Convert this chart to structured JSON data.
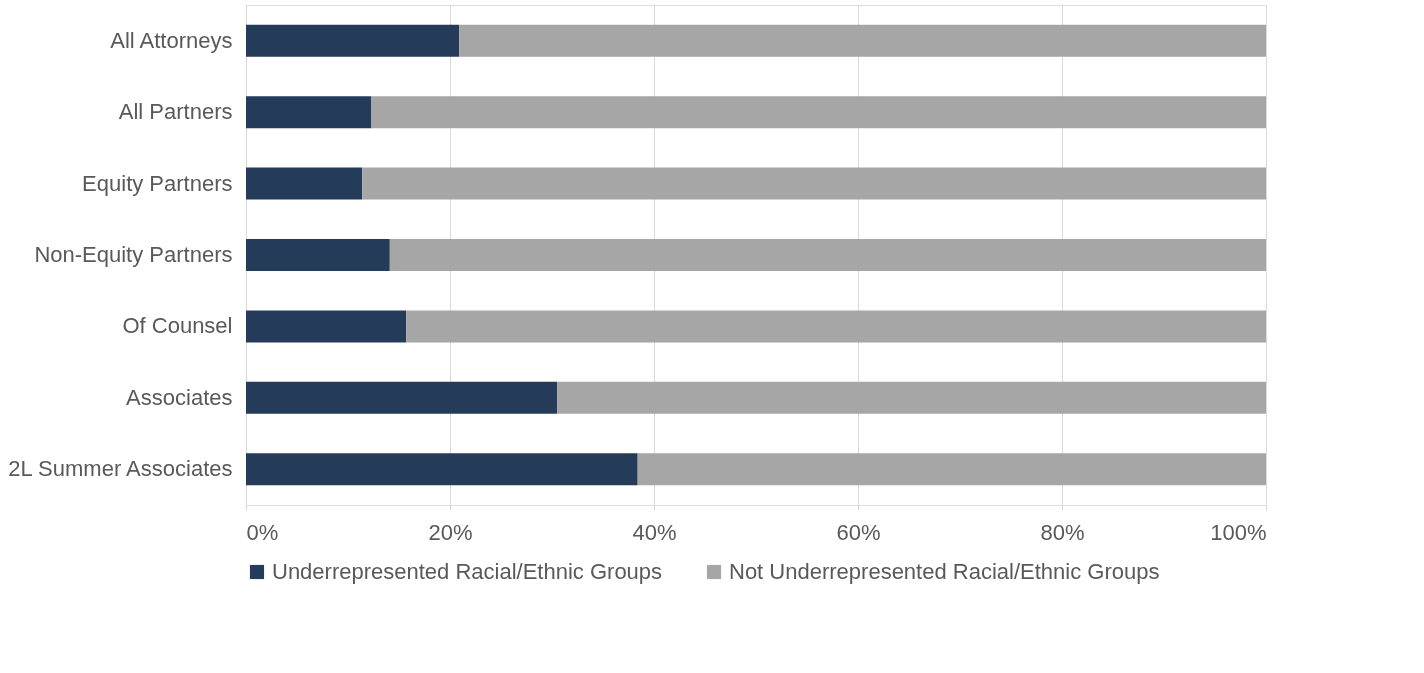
{
  "chart_data": {
    "type": "bar",
    "orientation": "horizontal",
    "stacked": true,
    "categories": [
      "All Attorneys",
      "All Partners",
      "Equity Partners",
      "Non-Equity Partners",
      "Of Counsel",
      "Associates",
      "2L Summer Associates"
    ],
    "series": [
      {
        "name": "Underrepresented Racial/Ethnic Groups",
        "color": "#243b5a",
        "values": [
          20.9,
          12.3,
          11.4,
          14.1,
          15.7,
          30.5,
          38.4
        ]
      },
      {
        "name": "Not Underrepresented Racial/Ethnic Groups",
        "color": "#a6a6a6",
        "values": [
          79.1,
          87.7,
          88.6,
          85.9,
          84.3,
          69.5,
          61.6
        ]
      }
    ],
    "xlim": [
      0,
      100
    ],
    "xticks": [
      {
        "value": 0,
        "label": "0%"
      },
      {
        "value": 20,
        "label": "20%"
      },
      {
        "value": 40,
        "label": "40%"
      },
      {
        "value": 60,
        "label": "60%"
      },
      {
        "value": 80,
        "label": "80%"
      },
      {
        "value": 100,
        "label": "100%"
      }
    ],
    "grid": "x",
    "legend": "bottom"
  }
}
